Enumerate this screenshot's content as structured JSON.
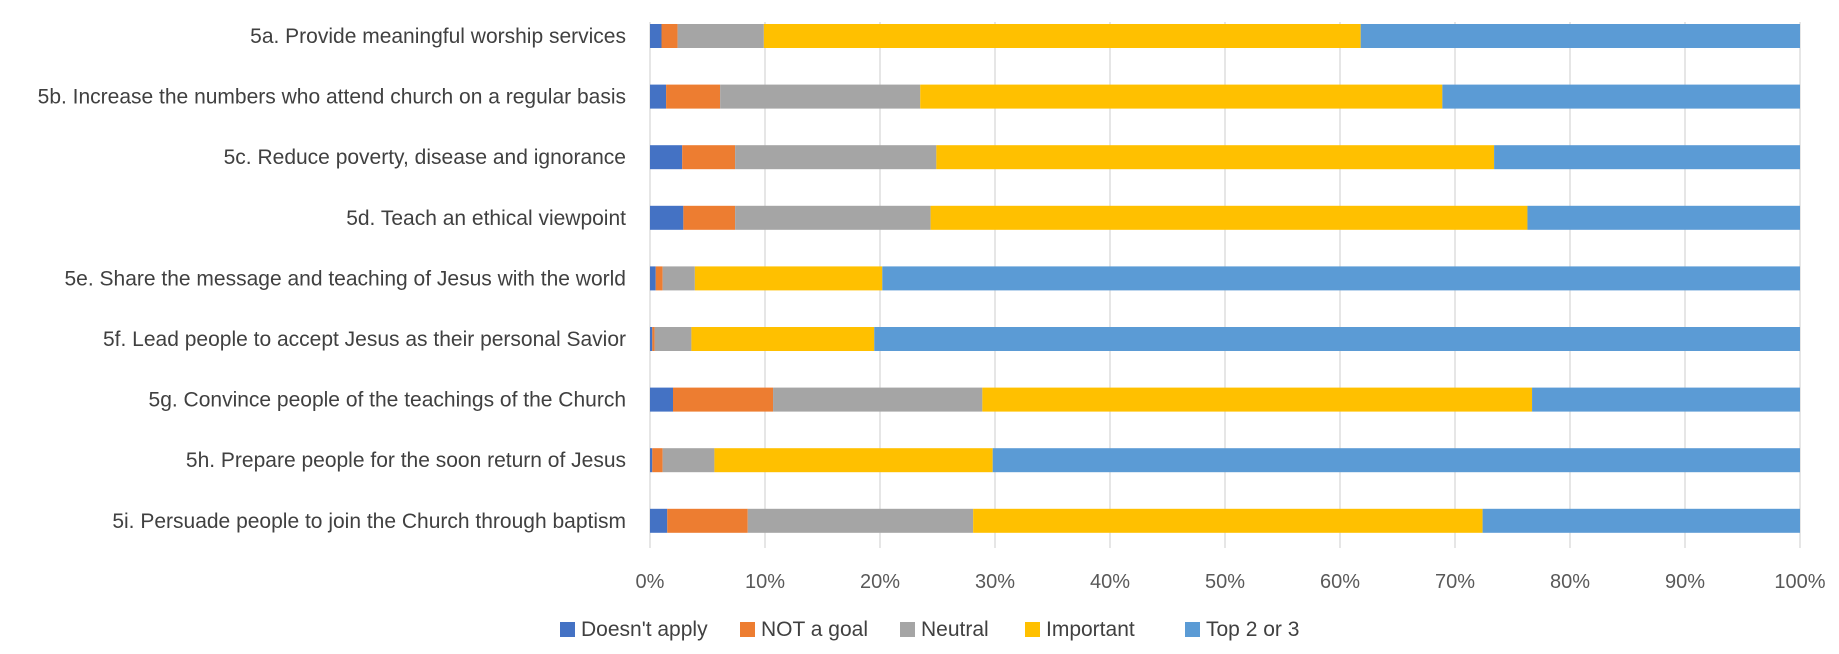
{
  "chart_data": {
    "type": "bar",
    "orientation": "horizontal",
    "stacked": "percent",
    "categories": [
      "5a. Provide meaningful worship services",
      "5b. Increase the numbers who attend church on a regular basis",
      "5c. Reduce poverty, disease and ignorance",
      "5d. Teach an ethical viewpoint",
      "5e. Share the message and teaching of Jesus with the world",
      "5f. Lead people to accept Jesus as their personal Savior",
      "5g. Convince people of the teachings of the Church",
      "5h. Prepare people for the soon return of Jesus",
      "5i. Persuade people to join the Church through baptism"
    ],
    "series": [
      {
        "name": "Doesn't apply",
        "color": "#4472c4",
        "values": [
          1.0,
          1.4,
          2.8,
          2.9,
          0.5,
          0.2,
          2.0,
          0.2,
          1.5
        ]
      },
      {
        "name": "NOT a goal",
        "color": "#ed7d31",
        "values": [
          1.4,
          4.7,
          4.6,
          4.5,
          0.6,
          0.2,
          8.7,
          0.9,
          7.0
        ]
      },
      {
        "name": "Neutral",
        "color": "#a5a5a5",
        "values": [
          7.5,
          17.4,
          17.5,
          17.0,
          2.8,
          3.2,
          18.2,
          4.5,
          19.6
        ]
      },
      {
        "name": "Important",
        "color": "#ffc000",
        "values": [
          51.9,
          45.4,
          48.5,
          51.9,
          16.3,
          15.9,
          47.8,
          24.2,
          44.3
        ]
      },
      {
        "name": "Top 2 or 3",
        "color": "#5b9bd5",
        "values": [
          38.2,
          31.1,
          26.6,
          23.7,
          79.8,
          80.5,
          23.3,
          70.2,
          27.6
        ]
      }
    ],
    "xlim": [
      0,
      100
    ],
    "x_ticks": [
      "0%",
      "10%",
      "20%",
      "30%",
      "40%",
      "50%",
      "60%",
      "70%",
      "80%",
      "90%",
      "100%"
    ],
    "grid": "vertical",
    "legend": "bottom"
  }
}
